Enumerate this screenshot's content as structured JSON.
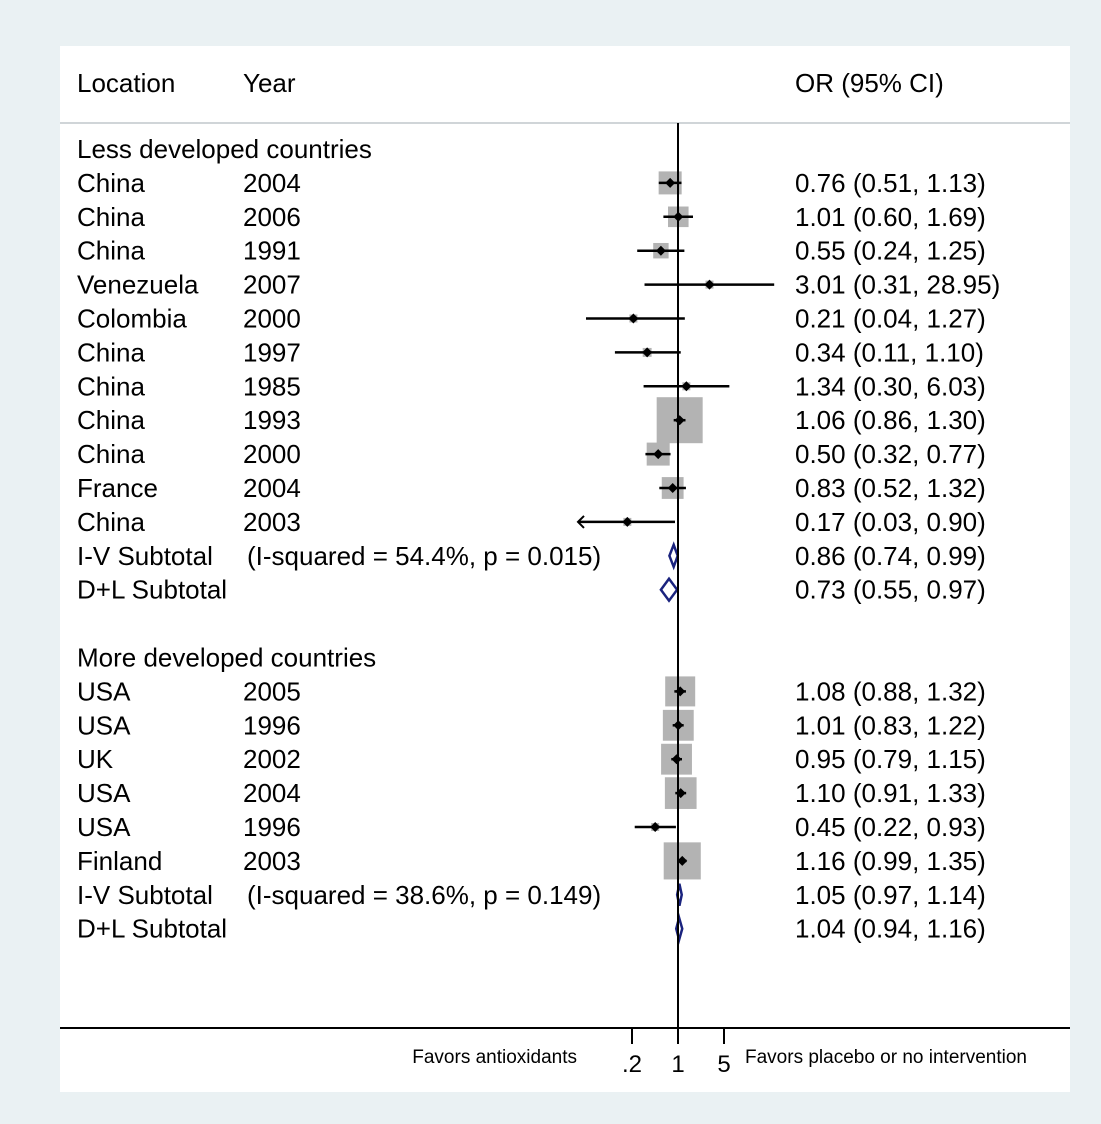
{
  "chart_data": {
    "type": "forest",
    "headers": {
      "location": "Location",
      "year": "Year",
      "effect": "OR (95% CI)"
    },
    "x_scale": "log",
    "null_line": 1,
    "x_ticks": [
      {
        "value": 0.2,
        "label": ".2"
      },
      {
        "value": 1,
        "label": "1"
      },
      {
        "value": 5,
        "label": "5"
      }
    ],
    "favors_left": "Favors antioxidants",
    "favors_right": "Favors placebo or no intervention",
    "groups": [
      {
        "title": "Less developed countries",
        "studies": [
          {
            "location": "China",
            "year": "2004",
            "or": 0.76,
            "lo": 0.51,
            "hi": 1.13,
            "weight": 1.0,
            "label": "0.76 (0.51, 1.13)"
          },
          {
            "location": "China",
            "year": "2006",
            "or": 1.01,
            "lo": 0.6,
            "hi": 1.69,
            "weight": 0.8,
            "label": "1.01 (0.60, 1.69)"
          },
          {
            "location": "China",
            "year": "1991",
            "or": 0.55,
            "lo": 0.24,
            "hi": 1.25,
            "weight": 0.45,
            "label": "0.55 (0.24, 1.25)"
          },
          {
            "location": "Venezuela",
            "year": "2007",
            "or": 3.01,
            "lo": 0.31,
            "hi": 28.95,
            "weight": 0.05,
            "label": "3.01 (0.31, 28.95)"
          },
          {
            "location": "Colombia",
            "year": "2000",
            "or": 0.21,
            "lo": 0.04,
            "hi": 1.27,
            "weight": 0.05,
            "label": "0.21 (0.04, 1.27)"
          },
          {
            "location": "China",
            "year": "1997",
            "or": 0.34,
            "lo": 0.11,
            "hi": 1.1,
            "weight": 0.15,
            "label": "0.34 (0.11, 1.10)"
          },
          {
            "location": "China",
            "year": "1985",
            "or": 1.34,
            "lo": 0.3,
            "hi": 6.03,
            "weight": 0.05,
            "label": "1.34 (0.30, 6.03)"
          },
          {
            "location": "China",
            "year": "1993",
            "or": 1.06,
            "lo": 0.86,
            "hi": 1.3,
            "weight": 4.0,
            "label": "1.06 (0.86, 1.30)"
          },
          {
            "location": "China",
            "year": "2000",
            "or": 0.5,
            "lo": 0.32,
            "hi": 0.77,
            "weight": 1.0,
            "label": "0.50 (0.32, 0.77)"
          },
          {
            "location": "France",
            "year": "2004",
            "or": 0.83,
            "lo": 0.52,
            "hi": 1.32,
            "weight": 0.9,
            "label": "0.83 (0.52, 1.32)"
          },
          {
            "location": "China",
            "year": "2003",
            "or": 0.17,
            "lo": 0.03,
            "hi": 0.9,
            "weight": 0.02,
            "label": "0.17 (0.03, 0.90)",
            "arrow_left": true
          }
        ],
        "subtotals": [
          {
            "label": "I-V Subtotal",
            "stats": "(I-squared = 54.4%, p = 0.015)",
            "or": 0.86,
            "lo": 0.74,
            "hi": 0.99,
            "ci_label": "0.86 (0.74, 0.99)"
          },
          {
            "label": "D+L Subtotal",
            "stats": "",
            "or": 0.73,
            "lo": 0.55,
            "hi": 0.97,
            "ci_label": "0.73 (0.55, 0.97)"
          }
        ]
      },
      {
        "title": "More developed countries",
        "studies": [
          {
            "location": "USA",
            "year": "2005",
            "or": 1.08,
            "lo": 0.88,
            "hi": 1.32,
            "weight": 1.7,
            "label": "1.08 (0.88, 1.32)"
          },
          {
            "location": "USA",
            "year": "1996",
            "or": 1.01,
            "lo": 0.83,
            "hi": 1.22,
            "weight": 1.8,
            "label": "1.01 (0.83, 1.22)"
          },
          {
            "location": "UK",
            "year": "2002",
            "or": 0.95,
            "lo": 0.79,
            "hi": 1.15,
            "weight": 1.8,
            "label": "0.95 (0.79, 1.15)"
          },
          {
            "location": "USA",
            "year": "2004",
            "or": 1.1,
            "lo": 0.91,
            "hi": 1.33,
            "weight": 1.9,
            "label": "1.10 (0.91, 1.33)"
          },
          {
            "location": "USA",
            "year": "1996",
            "or": 0.45,
            "lo": 0.22,
            "hi": 0.93,
            "weight": 0.05,
            "label": "0.45 (0.22, 0.93)"
          },
          {
            "location": "Finland",
            "year": "2003",
            "or": 1.16,
            "lo": 0.99,
            "hi": 1.35,
            "weight": 2.6,
            "label": "1.16 (0.99, 1.35)"
          }
        ],
        "subtotals": [
          {
            "label": "I-V Subtotal",
            "stats": "(I-squared = 38.6%, p = 0.149)",
            "or": 1.05,
            "lo": 0.97,
            "hi": 1.14,
            "ci_label": "1.05 (0.97, 1.14)"
          },
          {
            "label": "D+L Subtotal",
            "stats": "",
            "or": 1.04,
            "lo": 0.94,
            "hi": 1.16,
            "ci_label": "1.04 (0.94, 1.16)"
          }
        ]
      }
    ]
  }
}
